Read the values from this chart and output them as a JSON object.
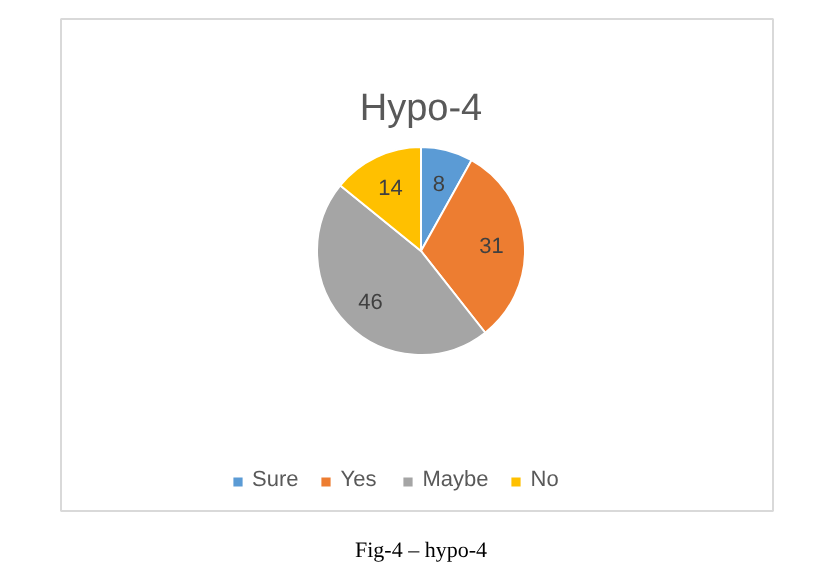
{
  "chart_data": {
    "type": "pie",
    "title": "Hypo-4",
    "categories": [
      "Sure",
      "Yes",
      "Maybe",
      "No"
    ],
    "values": [
      8,
      31,
      46,
      14
    ],
    "colors": [
      "#5b9bd5",
      "#ed7d31",
      "#a5a5a5",
      "#ffc000"
    ],
    "data_labels": true,
    "legend": "bottom",
    "annotations": [
      "Fig-4 – hypo-4"
    ]
  }
}
